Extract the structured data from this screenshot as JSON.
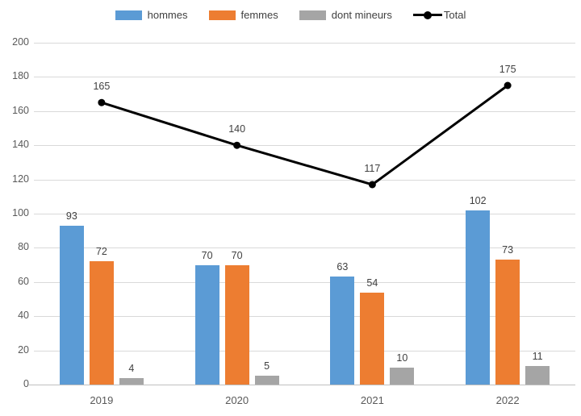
{
  "chart_data": {
    "type": "bar",
    "subtype": "grouped-bars-with-line-overlay",
    "categories": [
      "2019",
      "2020",
      "2021",
      "2022"
    ],
    "series": [
      {
        "name": "hommes",
        "render": "bar",
        "color": "#5B9BD5",
        "values": [
          93,
          70,
          63,
          102
        ]
      },
      {
        "name": "femmes",
        "render": "bar",
        "color": "#ED7D31",
        "values": [
          72,
          70,
          54,
          73
        ]
      },
      {
        "name": "dont mineurs",
        "render": "bar",
        "color": "#A5A5A5",
        "values": [
          4,
          5,
          10,
          11
        ]
      },
      {
        "name": "Total",
        "render": "line",
        "color": "#000000",
        "values": [
          165,
          140,
          117,
          175
        ]
      }
    ],
    "title": "",
    "xlabel": "",
    "ylabel": "",
    "ylim": [
      0,
      200
    ],
    "ytick_step": 20,
    "yticks": [
      0,
      20,
      40,
      60,
      80,
      100,
      120,
      140,
      160,
      180,
      200
    ],
    "grid": true,
    "legend_position": "top",
    "data_labels": true
  },
  "colors": {
    "gridline": "#D9D9D9",
    "axis_line": "#BFBFBF",
    "tick_label": "#595959",
    "data_label": "#404040",
    "background": "#FFFFFF"
  }
}
